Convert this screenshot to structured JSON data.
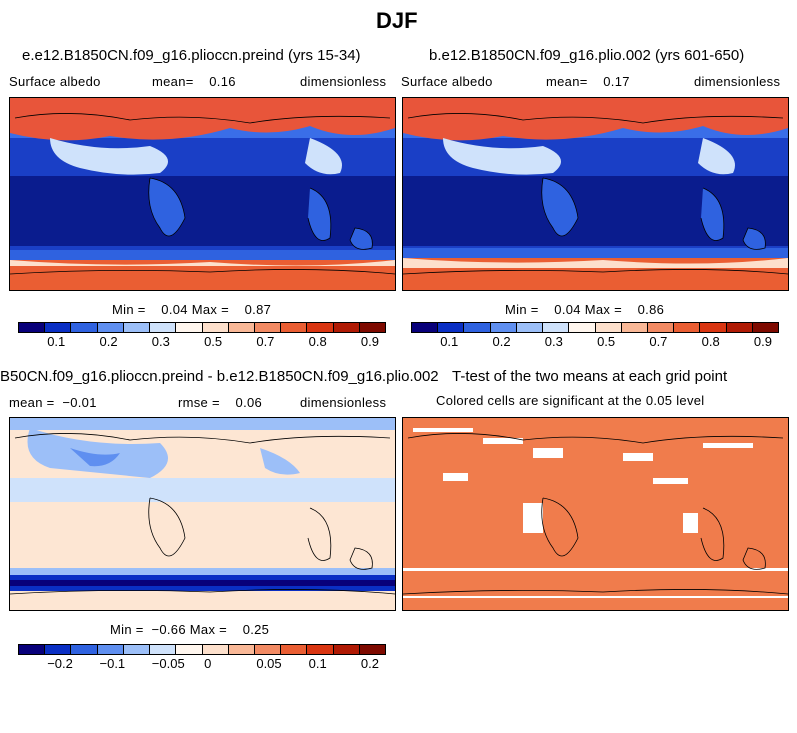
{
  "figure": {
    "title": "DJF"
  },
  "panels": {
    "p1": {
      "title": "e.e12.B1850CN.f09_g16.plioccn.preind (yrs 15-34)",
      "variable": "Surface albedo",
      "mean": "mean=    0.16",
      "units": "dimensionless",
      "minmax": "Min =    0.04 Max =    0.87"
    },
    "p2": {
      "title": "b.e12.B1850CN.f09_g16.plio.002 (yrs 601-650)",
      "variable": "Surface albedo",
      "mean": "mean=    0.17",
      "units": "dimensionless",
      "minmax": "Min =    0.04 Max =    0.86"
    },
    "p3": {
      "title": "B50CN.f09_g16.plioccn.preind - b.e12.B1850CN.f09_g16.plio.002",
      "mean": "mean =  −0.01",
      "rmse": "rmse =    0.06",
      "units": "dimensionless",
      "minmax": "Min =  −0.66 Max =    0.25"
    },
    "p4": {
      "title": "T-test of the two means at each grid point",
      "subtitle": "Colored cells are significant at the 0.05 level"
    }
  },
  "colorbar_abs": {
    "colors": [
      "#08007a",
      "#0a2fc4",
      "#2f62e0",
      "#5f8ff0",
      "#9cbff8",
      "#cfe2fb",
      "#fff6ee",
      "#fde0cc",
      "#f9b897",
      "#f28a63",
      "#ea5e33",
      "#d93511",
      "#b01a04",
      "#7e0a00"
    ],
    "ticks": [
      "0.1",
      "0.2",
      "0.3",
      "0.5",
      "0.7",
      "0.8",
      "0.9"
    ]
  },
  "colorbar_diff": {
    "colors": [
      "#08007a",
      "#0a2fc4",
      "#2f62e0",
      "#5f8ff0",
      "#9cbff8",
      "#cfe2fb",
      "#fff6ee",
      "#fde0cc",
      "#f9b897",
      "#f28a63",
      "#ea5e33",
      "#d93511",
      "#b01a04",
      "#7e0a00"
    ],
    "ticks": [
      "−0.2",
      "−0.1",
      "−0.05",
      "0",
      "0.05",
      "0.1",
      "0.2"
    ]
  },
  "colors": {
    "ocean_low": "#0a1c8e",
    "ocean_mid": "#1a3fc6",
    "land_low": "#2f62e0",
    "snow": "#e8553a",
    "ice": "#ea5e33",
    "diff_neutral": "#fde6d3",
    "diff_neg": "#cfe2fb",
    "ttest": "#f07c4c"
  }
}
